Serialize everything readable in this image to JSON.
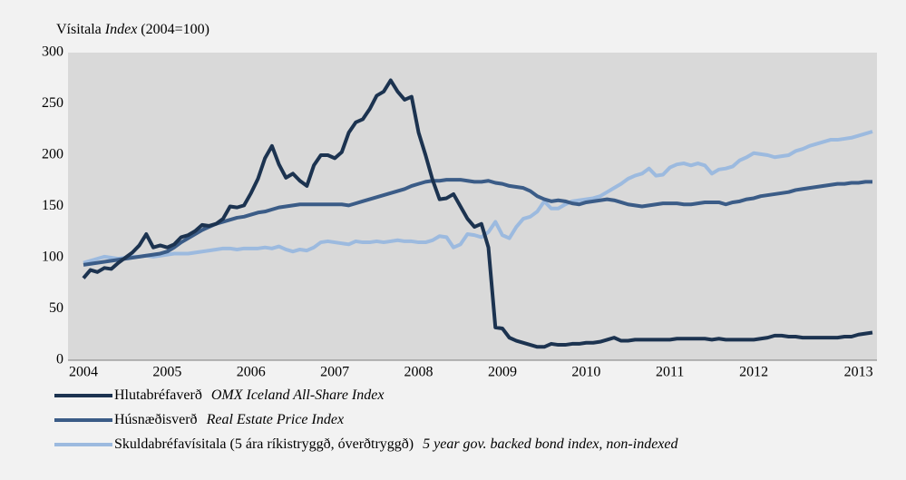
{
  "chart_data": {
    "type": "line",
    "y_label": "Vísitala",
    "y_label_italic": "Index",
    "y_label_suffix": "(2004=100)",
    "categories": [
      "2004",
      null,
      null,
      null,
      null,
      null,
      null,
      null,
      null,
      null,
      null,
      null,
      "2005",
      null,
      null,
      null,
      null,
      null,
      null,
      null,
      null,
      null,
      null,
      null,
      "2006",
      null,
      null,
      null,
      null,
      null,
      null,
      null,
      null,
      null,
      null,
      null,
      "2007",
      null,
      null,
      null,
      null,
      null,
      null,
      null,
      null,
      null,
      null,
      null,
      "2008",
      null,
      null,
      null,
      null,
      null,
      null,
      null,
      null,
      null,
      null,
      null,
      "2009",
      null,
      null,
      null,
      null,
      null,
      null,
      null,
      null,
      null,
      null,
      null,
      "2010",
      null,
      null,
      null,
      null,
      null,
      null,
      null,
      null,
      null,
      null,
      null,
      "2011",
      null,
      null,
      null,
      null,
      null,
      null,
      null,
      null,
      null,
      null,
      null,
      "2012",
      null,
      null,
      null,
      null,
      null,
      null,
      null,
      null,
      null,
      null,
      null,
      null,
      null,
      null,
      "2013",
      null,
      null
    ],
    "ylim": [
      0,
      300
    ],
    "yticks": [
      0,
      50,
      100,
      150,
      200,
      250,
      300
    ],
    "grid": false,
    "series": [
      {
        "name": "Hlutabréfaverð",
        "name_en": "OMX Iceland All-Share Index",
        "color": "#1c3350",
        "values": [
          80,
          88,
          86,
          90,
          89,
          95,
          100,
          105,
          112,
          123,
          110,
          112,
          110,
          113,
          120,
          122,
          126,
          132,
          131,
          133,
          138,
          150,
          149,
          151,
          163,
          177,
          197,
          209,
          191,
          178,
          182,
          175,
          170,
          190,
          200,
          200,
          197,
          203,
          222,
          232,
          235,
          245,
          258,
          262,
          273,
          262,
          254,
          257,
          222,
          200,
          176,
          157,
          158,
          162,
          150,
          138,
          130,
          133,
          110,
          32,
          31,
          22,
          19,
          17,
          15,
          13,
          13,
          16,
          15,
          15,
          16,
          16,
          17,
          17,
          18,
          20,
          22,
          19,
          19,
          20,
          20,
          20,
          20,
          20,
          20,
          21,
          21,
          21,
          21,
          21,
          20,
          21,
          20,
          20,
          20,
          20,
          20,
          21,
          22,
          24,
          24,
          23,
          23,
          22,
          22,
          22,
          22,
          22,
          22,
          23,
          23,
          25,
          26,
          27
        ]
      },
      {
        "name": "Húsnæðisverð",
        "name_en": "Real Estate Price Index",
        "color": "#3b5c87",
        "values": [
          93,
          94,
          95,
          96,
          97,
          98,
          99,
          100,
          101,
          102,
          103,
          104,
          106,
          110,
          115,
          119,
          123,
          127,
          130,
          133,
          135,
          137,
          139,
          140,
          142,
          144,
          145,
          147,
          149,
          150,
          151,
          152,
          152,
          152,
          152,
          152,
          152,
          152,
          151,
          153,
          155,
          157,
          159,
          161,
          163,
          165,
          167,
          170,
          172,
          174,
          175,
          175,
          176,
          176,
          176,
          175,
          174,
          174,
          175,
          173,
          172,
          170,
          169,
          168,
          165,
          160,
          157,
          155,
          156,
          155,
          153,
          152,
          154,
          155,
          156,
          157,
          156,
          154,
          152,
          151,
          150,
          151,
          152,
          153,
          153,
          153,
          152,
          152,
          153,
          154,
          154,
          154,
          152,
          154,
          155,
          157,
          158,
          160,
          161,
          162,
          163,
          164,
          166,
          167,
          168,
          169,
          170,
          171,
          172,
          172,
          173,
          173,
          174,
          174
        ]
      },
      {
        "name": "Skuldabréfavísitala (5 ára ríkistryggð, óverðtryggð)",
        "name_en": "5 year gov. backed bond index, non-indexed",
        "color": "#9cbadf",
        "values": [
          95,
          97,
          99,
          101,
          100,
          99,
          100,
          101,
          101,
          102,
          101,
          102,
          103,
          104,
          104,
          104,
          105,
          106,
          107,
          108,
          109,
          109,
          108,
          109,
          109,
          109,
          110,
          109,
          111,
          108,
          106,
          108,
          107,
          110,
          115,
          116,
          115,
          114,
          113,
          116,
          115,
          115,
          116,
          115,
          116,
          117,
          116,
          116,
          115,
          115,
          117,
          121,
          120,
          110,
          113,
          123,
          122,
          120,
          125,
          135,
          122,
          119,
          130,
          138,
          140,
          145,
          155,
          148,
          148,
          152,
          155,
          156,
          157,
          158,
          160,
          164,
          168,
          172,
          177,
          180,
          182,
          187,
          180,
          181,
          188,
          191,
          192,
          190,
          192,
          190,
          182,
          186,
          187,
          189,
          195,
          198,
          202,
          201,
          200,
          198,
          199,
          200,
          204,
          206,
          209,
          211,
          213,
          215,
          215,
          216,
          217,
          219,
          221,
          223
        ]
      }
    ]
  }
}
